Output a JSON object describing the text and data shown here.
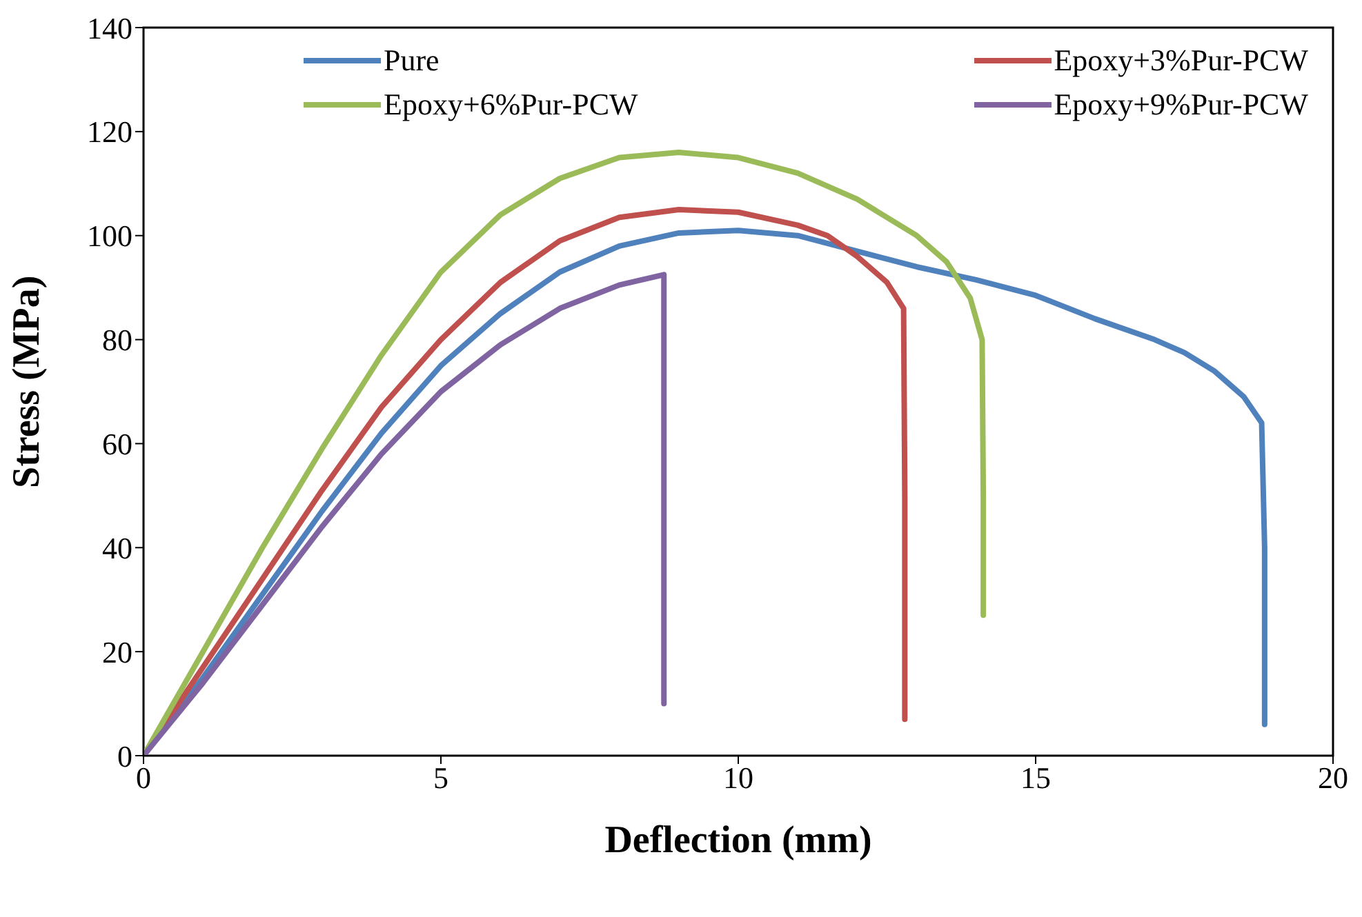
{
  "chart_data": {
    "type": "line",
    "xlabel": "Deflection (mm)",
    "ylabel": "Stress (MPa)",
    "xlim": [
      0,
      20
    ],
    "xticks": [
      0,
      5,
      10,
      15,
      20
    ],
    "ylim": [
      0,
      140
    ],
    "yticks": [
      0,
      20,
      40,
      60,
      80,
      100,
      120,
      140
    ],
    "grid": false,
    "legend": "top",
    "marker": "none",
    "line_style": "solid",
    "series": [
      {
        "name": "Pure",
        "color": "#4f81bd",
        "x": [
          0,
          1,
          2,
          3,
          4,
          5,
          6,
          7,
          8,
          9,
          10,
          11,
          12,
          13,
          14,
          15,
          16,
          17,
          17.5,
          18,
          18.5,
          18.8,
          18.85,
          18.85
        ],
        "values": [
          0,
          15,
          31,
          47,
          62,
          75,
          85,
          93,
          98,
          100.5,
          101,
          100,
          97,
          94,
          91.5,
          88.5,
          84,
          80,
          77.5,
          74,
          69,
          64,
          40,
          6
        ]
      },
      {
        "name": "Epoxy+3%Pur-PCW",
        "color": "#c0504d",
        "x": [
          0,
          1,
          2,
          3,
          4,
          5,
          6,
          7,
          8,
          9,
          10,
          11,
          11.5,
          12,
          12.5,
          12.78,
          12.8,
          12.8
        ],
        "values": [
          0,
          17,
          34,
          51,
          67,
          80,
          91,
          99,
          103.5,
          105,
          104.5,
          102,
          100,
          96,
          91,
          86,
          50,
          7
        ]
      },
      {
        "name": "Epoxy+6%Pur-PCW",
        "color": "#9bbb59",
        "x": [
          0,
          1,
          2,
          3,
          4,
          5,
          6,
          7,
          8,
          9,
          10,
          11,
          12,
          13,
          13.5,
          13.9,
          14.1,
          14.12,
          14.12
        ],
        "values": [
          0,
          20,
          40,
          59,
          77,
          93,
          104,
          111,
          115,
          116,
          115,
          112,
          107,
          100,
          95,
          88,
          80,
          50,
          27
        ]
      },
      {
        "name": "Epoxy+9%Pur-PCW",
        "color": "#8064a2",
        "x": [
          0,
          1,
          2,
          3,
          4,
          5,
          6,
          7,
          8,
          8.75,
          8.75,
          8.75
        ],
        "values": [
          0,
          14,
          29,
          44,
          58,
          70,
          79,
          86,
          90.5,
          92.5,
          50,
          10
        ]
      }
    ]
  }
}
